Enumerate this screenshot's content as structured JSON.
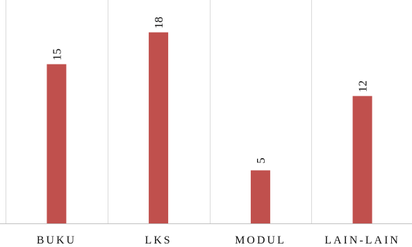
{
  "chart_data": {
    "type": "bar",
    "categories": [
      "BUKU",
      "LKS",
      "MODUL",
      "LAIN-LAIN"
    ],
    "values": [
      15,
      18,
      5,
      12
    ],
    "title": "",
    "xlabel": "",
    "ylabel": "",
    "ylim": [
      0,
      20
    ],
    "grid": true,
    "legend": "none",
    "colors": {
      "bar": "#c0504d"
    }
  }
}
